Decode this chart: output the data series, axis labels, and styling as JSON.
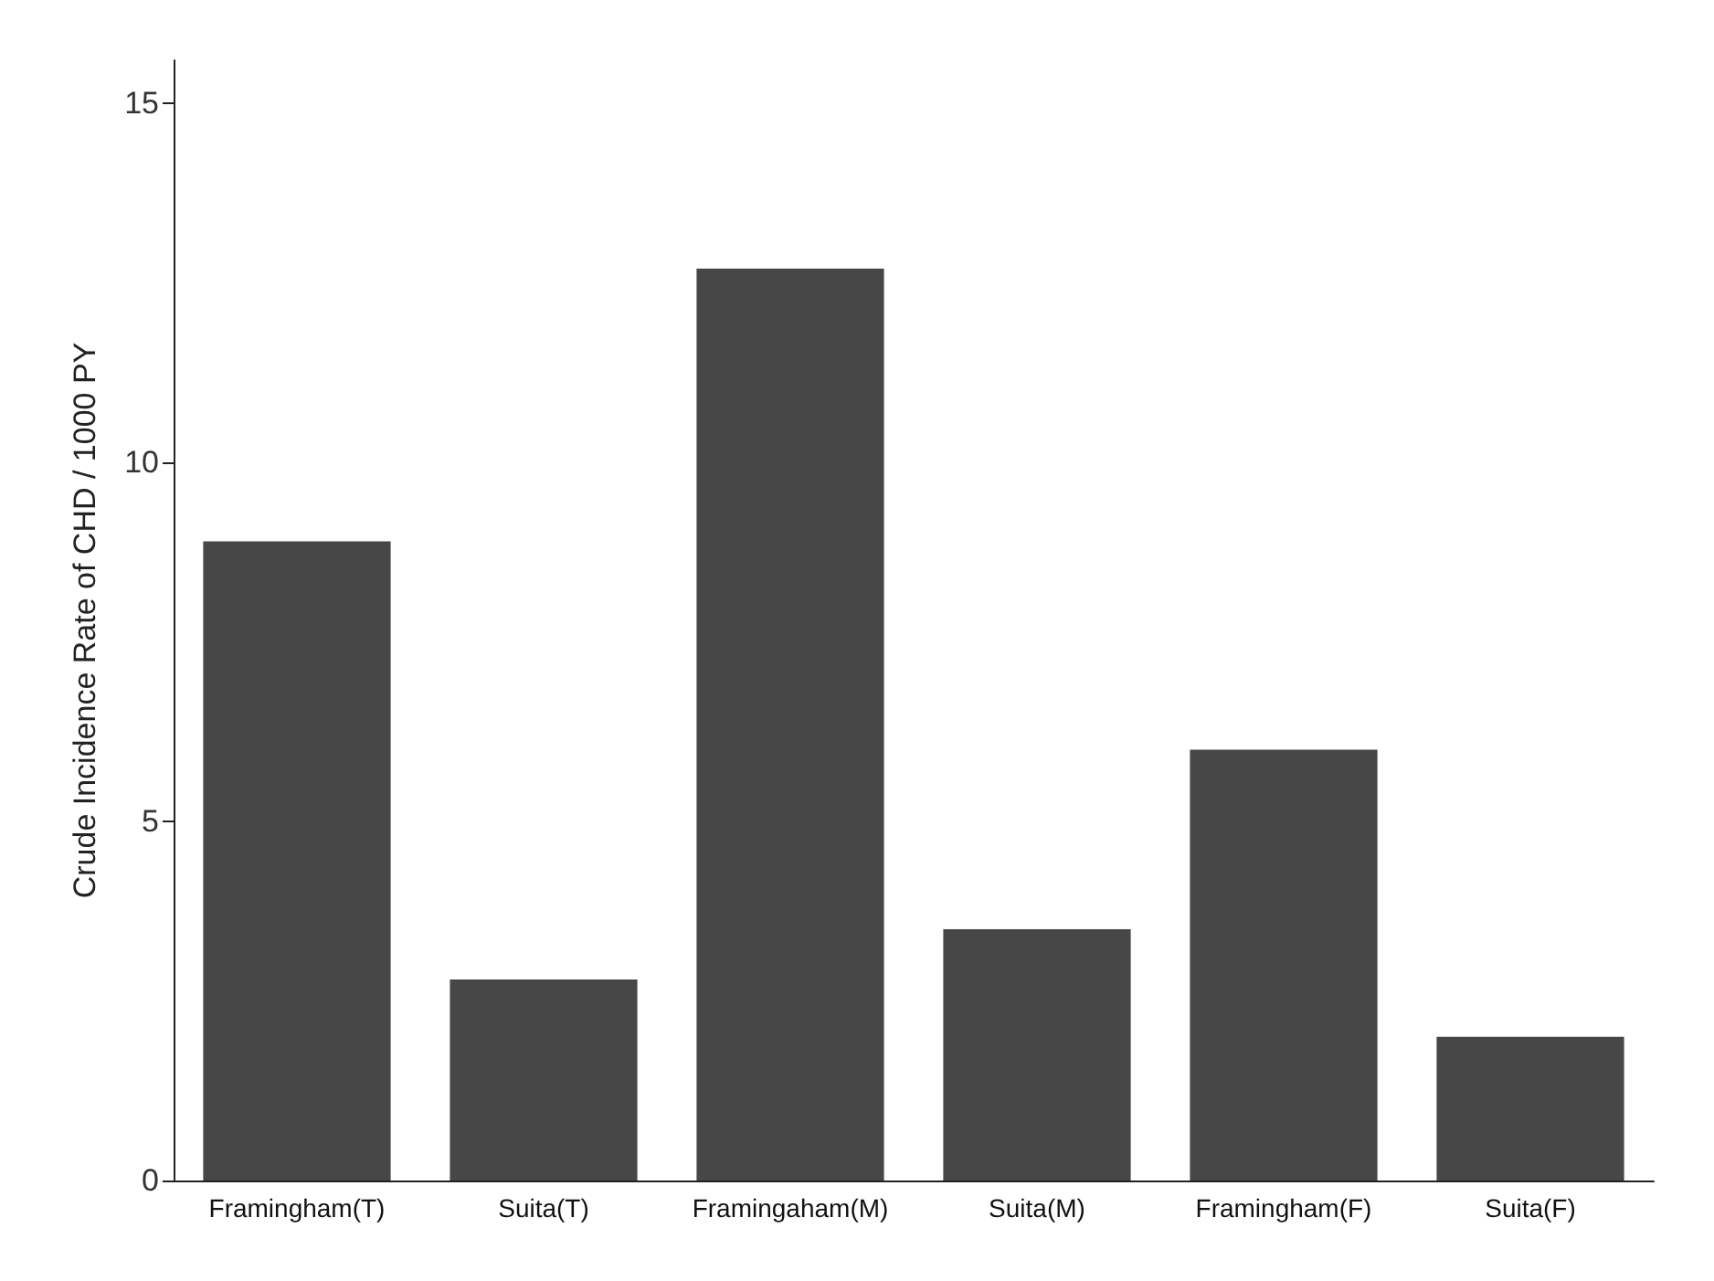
{
  "chart_data": {
    "type": "bar",
    "ylabel": "Crude Incidence Rate of CHD / 1000 PY",
    "categories": [
      "Framingham(T)",
      "Suita(T)",
      "Framingaham(M)",
      "Suita(M)",
      "Framingham(F)",
      "Suita(F)"
    ],
    "values": [
      8.9,
      2.8,
      12.7,
      3.5,
      6.0,
      2.0
    ],
    "color": "#474747",
    "ylim": [
      0,
      15.6
    ],
    "yticks": [
      0,
      5,
      10,
      15
    ],
    "grid": false
  }
}
